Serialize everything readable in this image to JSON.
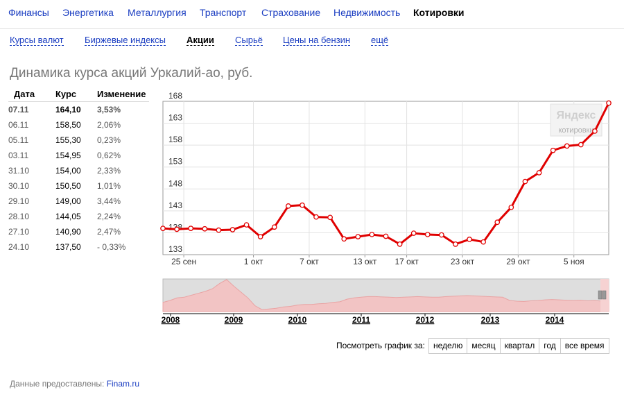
{
  "topnav": {
    "items": [
      {
        "label": "Финансы",
        "active": false
      },
      {
        "label": "Энергетика",
        "active": false
      },
      {
        "label": "Металлургия",
        "active": false
      },
      {
        "label": "Транспорт",
        "active": false
      },
      {
        "label": "Страхование",
        "active": false
      },
      {
        "label": "Недвижимость",
        "active": false
      },
      {
        "label": "Котировки",
        "active": true
      }
    ]
  },
  "subnav": {
    "items": [
      {
        "label": "Курсы валют",
        "active": false
      },
      {
        "label": "Биржевые индексы",
        "active": false
      },
      {
        "label": "Акции",
        "active": true
      },
      {
        "label": "Сырьё",
        "active": false
      },
      {
        "label": "Цены на бензин",
        "active": false
      },
      {
        "label": "ещё",
        "active": false
      }
    ]
  },
  "page_title": "Динамика курса акций Уркалий-ао, руб.",
  "table": {
    "headers": {
      "date": "Дата",
      "price": "Курс",
      "change": "Изменение"
    },
    "rows": [
      {
        "date": "07.11",
        "price": "164,10",
        "change": "3,53%"
      },
      {
        "date": "06.11",
        "price": "158,50",
        "change": "2,06%"
      },
      {
        "date": "05.11",
        "price": "155,30",
        "change": "0,23%"
      },
      {
        "date": "03.11",
        "price": "154,95",
        "change": "0,62%"
      },
      {
        "date": "31.10",
        "price": "154,00",
        "change": "2,33%"
      },
      {
        "date": "30.10",
        "price": "150,50",
        "change": "1,01%"
      },
      {
        "date": "29.10",
        "price": "149,00",
        "change": "3,44%"
      },
      {
        "date": "28.10",
        "price": "144,05",
        "change": "2,24%"
      },
      {
        "date": "27.10",
        "price": "140,90",
        "change": "2,47%"
      },
      {
        "date": "24.10",
        "price": "137,50",
        "change": "- 0,33%"
      }
    ]
  },
  "watermark": {
    "brand": "Яндекс",
    "sub": "котировки"
  },
  "chart_data": {
    "type": "line",
    "ylim": [
      133,
      168
    ],
    "y_ticks": [
      "133",
      "138",
      "143",
      "148",
      "153",
      "158",
      "163",
      "168"
    ],
    "x_ticks": [
      "25 сен",
      "1 окт",
      "7 окт",
      "13 окт",
      "17 окт",
      "23 окт",
      "29 окт",
      "5 ноя"
    ],
    "line_color": "#e00000",
    "grid": true,
    "series": [
      {
        "values": [
          139.0,
          138.8,
          139.0,
          138.9,
          138.6,
          138.7,
          139.8,
          137.1,
          139.3,
          144.1,
          144.3,
          141.6,
          141.5,
          136.6,
          137.1,
          137.6,
          137.2,
          135.4,
          137.9,
          137.6,
          137.5,
          135.4,
          136.5,
          135.9,
          140.4,
          143.8,
          149.7,
          151.7,
          156.8,
          157.8,
          158.1,
          161.2,
          167.6
        ]
      }
    ]
  },
  "navigator": {
    "years": [
      "2008",
      "2009",
      "2010",
      "2011",
      "2012",
      "2013",
      "2014"
    ],
    "fill_color": "#f2c4c4",
    "line_color": "#e9a3a3",
    "values": [
      0.28,
      0.34,
      0.42,
      0.44,
      0.5,
      0.56,
      0.62,
      0.7,
      0.86,
      0.98,
      0.78,
      0.6,
      0.42,
      0.18,
      0.06,
      0.08,
      0.1,
      0.14,
      0.16,
      0.2,
      0.22,
      0.22,
      0.24,
      0.25,
      0.28,
      0.3,
      0.38,
      0.42,
      0.44,
      0.46,
      0.46,
      0.45,
      0.44,
      0.43,
      0.44,
      0.45,
      0.46,
      0.45,
      0.44,
      0.44,
      0.46,
      0.47,
      0.48,
      0.49,
      0.48,
      0.47,
      0.46,
      0.45,
      0.44,
      0.34,
      0.32,
      0.31,
      0.33,
      0.34,
      0.36,
      0.37,
      0.36,
      0.35,
      0.34,
      0.35,
      0.33,
      0.34,
      0.32,
      0.33
    ]
  },
  "period": {
    "label": "Посмотреть график за:",
    "buttons": [
      "неделю",
      "месяц",
      "квартал",
      "год",
      "все время"
    ]
  },
  "footer": {
    "label": "Данные предоставлены:",
    "source": "Finam.ru"
  }
}
